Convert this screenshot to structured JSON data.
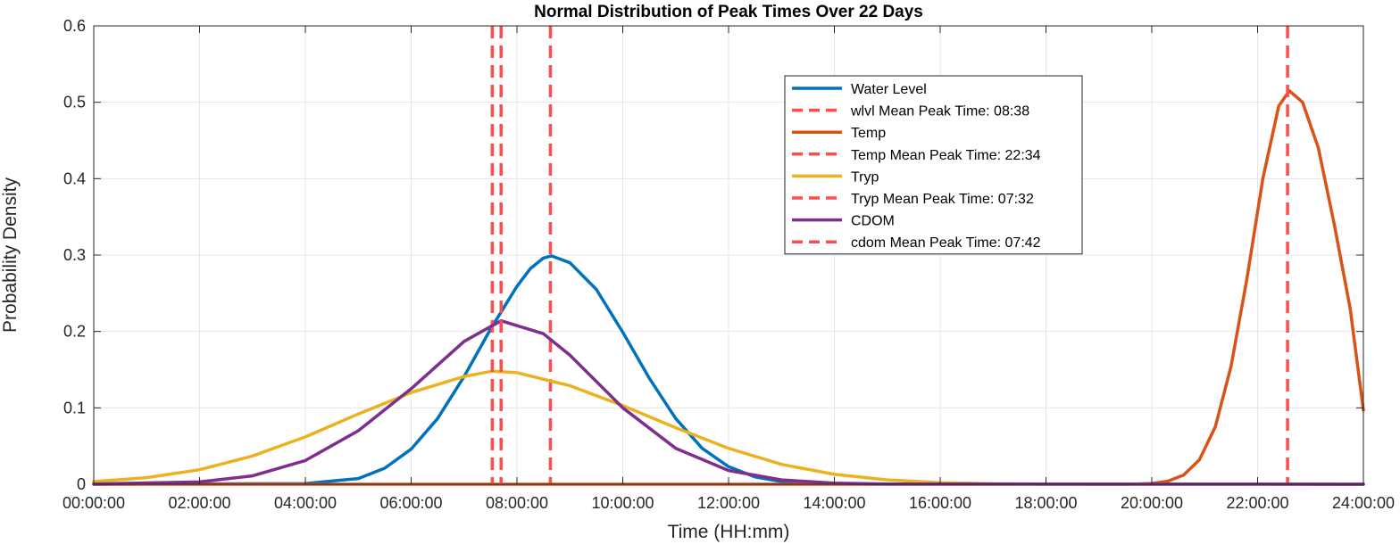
{
  "chart_data": {
    "type": "line",
    "title": "Normal Distribution of Peak Times Over 22 Days",
    "xlabel": "Time (HH:mm)",
    "ylabel": "Probability Density",
    "xlim": [
      0,
      24
    ],
    "ylim": [
      0,
      0.6
    ],
    "x_ticks": [
      "00:00:00",
      "02:00:00",
      "04:00:00",
      "06:00:00",
      "08:00:00",
      "10:00:00",
      "12:00:00",
      "14:00:00",
      "16:00:00",
      "18:00:00",
      "20:00:00",
      "22:00:00",
      "24:00:00"
    ],
    "y_ticks": [
      "0",
      "0.1",
      "0.2",
      "0.3",
      "0.4",
      "0.5",
      "0.6"
    ],
    "grid": true,
    "legend_position": "top-right",
    "series": [
      {
        "name": "Water Level",
        "color": "#0072BD",
        "style": "solid",
        "points": [
          [
            0,
            0
          ],
          [
            4.0,
            0.0009
          ],
          [
            5.0,
            0.0075
          ],
          [
            5.5,
            0.021
          ],
          [
            6.0,
            0.046
          ],
          [
            6.5,
            0.086
          ],
          [
            7.0,
            0.141
          ],
          [
            7.5,
            0.203
          ],
          [
            8.0,
            0.259
          ],
          [
            8.25,
            0.282
          ],
          [
            8.5,
            0.296
          ],
          [
            8.65,
            0.299
          ],
          [
            9.0,
            0.29
          ],
          [
            9.5,
            0.255
          ],
          [
            10.0,
            0.199
          ],
          [
            10.5,
            0.139
          ],
          [
            11.0,
            0.086
          ],
          [
            11.5,
            0.047
          ],
          [
            12.0,
            0.023
          ],
          [
            12.5,
            0.0096
          ],
          [
            13.0,
            0.0035
          ],
          [
            14.0,
            0.0003
          ],
          [
            24,
            0
          ]
        ]
      },
      {
        "name": "wlvl Mean Peak Time: 08:38",
        "color": "#FF4D4D",
        "style": "dashed",
        "x": 8.633
      },
      {
        "name": "Temp",
        "color": "#D95319",
        "style": "solid",
        "points": [
          [
            0,
            0
          ],
          [
            19.5,
            0
          ],
          [
            20.0,
            0.001
          ],
          [
            20.3,
            0.004
          ],
          [
            20.6,
            0.012
          ],
          [
            20.9,
            0.032
          ],
          [
            21.2,
            0.075
          ],
          [
            21.5,
            0.155
          ],
          [
            21.8,
            0.27
          ],
          [
            22.1,
            0.4
          ],
          [
            22.4,
            0.495
          ],
          [
            22.6,
            0.515
          ],
          [
            22.85,
            0.5
          ],
          [
            23.15,
            0.44
          ],
          [
            23.45,
            0.34
          ],
          [
            23.75,
            0.23
          ],
          [
            24.0,
            0.097
          ]
        ]
      },
      {
        "name": "Temp Mean Peak Time: 22:34",
        "color": "#FF4D4D",
        "style": "dashed",
        "x": 22.567
      },
      {
        "name": "Tryp",
        "color": "#EDB120",
        "style": "solid",
        "points": [
          [
            0,
            0.0035
          ],
          [
            1.0,
            0.0086
          ],
          [
            2.0,
            0.019
          ],
          [
            3.0,
            0.037
          ],
          [
            4.0,
            0.062
          ],
          [
            5.0,
            0.092
          ],
          [
            6.0,
            0.12
          ],
          [
            7.0,
            0.141
          ],
          [
            7.53,
            0.148
          ],
          [
            8.0,
            0.146
          ],
          [
            9.0,
            0.129
          ],
          [
            10.0,
            0.103
          ],
          [
            11.0,
            0.074
          ],
          [
            12.0,
            0.047
          ],
          [
            13.0,
            0.026
          ],
          [
            14.0,
            0.013
          ],
          [
            15.0,
            0.0057
          ],
          [
            16.0,
            0.0021
          ],
          [
            17.0,
            0.0007
          ],
          [
            18.0,
            0.0002
          ],
          [
            24,
            0
          ]
        ]
      },
      {
        "name": "Tryp Mean Peak Time: 07:32",
        "color": "#FF4D4D",
        "style": "dashed",
        "x": 7.533
      },
      {
        "name": "CDOM",
        "color": "#7E2F8E",
        "style": "solid",
        "points": [
          [
            0,
            0.0003
          ],
          [
            2.0,
            0.003
          ],
          [
            3.0,
            0.011
          ],
          [
            4.0,
            0.031
          ],
          [
            5.0,
            0.07
          ],
          [
            6.0,
            0.125
          ],
          [
            7.0,
            0.187
          ],
          [
            7.7,
            0.214
          ],
          [
            8.5,
            0.197
          ],
          [
            9.0,
            0.169
          ],
          [
            10.0,
            0.1
          ],
          [
            11.0,
            0.047
          ],
          [
            12.0,
            0.018
          ],
          [
            13.0,
            0.0057
          ],
          [
            14.0,
            0.0014
          ],
          [
            15.0,
            0.0003
          ],
          [
            24,
            0
          ]
        ]
      },
      {
        "name": "cdom Mean Peak Time: 07:42",
        "color": "#FF4D4D",
        "style": "dashed",
        "x": 7.7
      }
    ]
  }
}
